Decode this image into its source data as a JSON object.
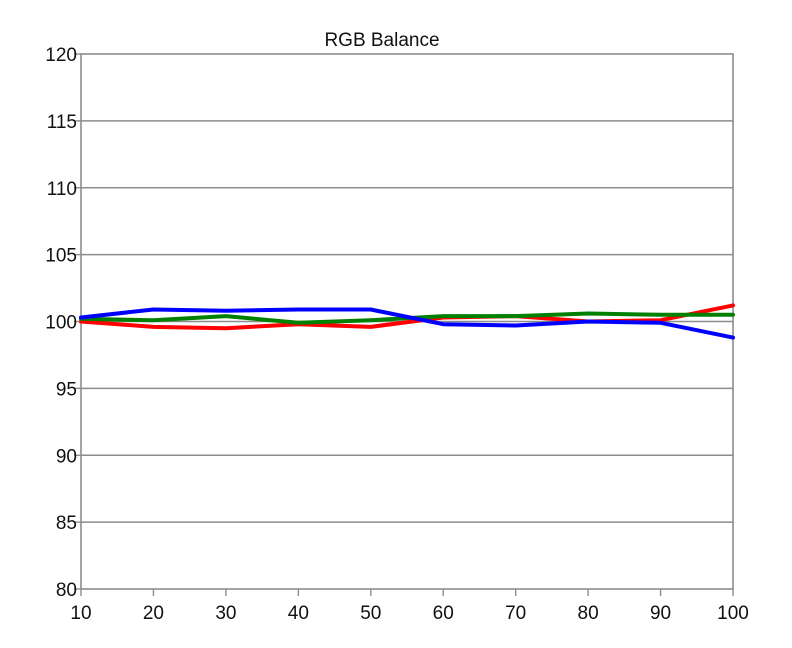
{
  "chart_data": {
    "type": "line",
    "title": "RGB Balance",
    "xlabel": "",
    "ylabel": "",
    "x": [
      10,
      20,
      30,
      40,
      50,
      60,
      70,
      80,
      90,
      100
    ],
    "xlim": [
      10,
      100
    ],
    "ylim": [
      80,
      120
    ],
    "xticks": [
      "10",
      "20",
      "30",
      "40",
      "50",
      "60",
      "70",
      "80",
      "90",
      "100"
    ],
    "yticks": [
      "80",
      "85",
      "90",
      "95",
      "100",
      "105",
      "110",
      "115",
      "120"
    ],
    "grid": "horizontal",
    "legend": "none",
    "series": [
      {
        "color": "#ff0000",
        "values": [
          100.0,
          99.6,
          99.5,
          99.8,
          99.6,
          100.3,
          100.4,
          100.0,
          100.1,
          101.2
        ]
      },
      {
        "color": "#008000",
        "values": [
          100.2,
          100.1,
          100.4,
          99.9,
          100.1,
          100.4,
          100.4,
          100.6,
          100.5,
          100.5
        ]
      },
      {
        "color": "#0000ff",
        "values": [
          100.3,
          100.9,
          100.8,
          100.9,
          100.9,
          99.8,
          99.7,
          100.0,
          99.9,
          98.8
        ]
      }
    ]
  }
}
